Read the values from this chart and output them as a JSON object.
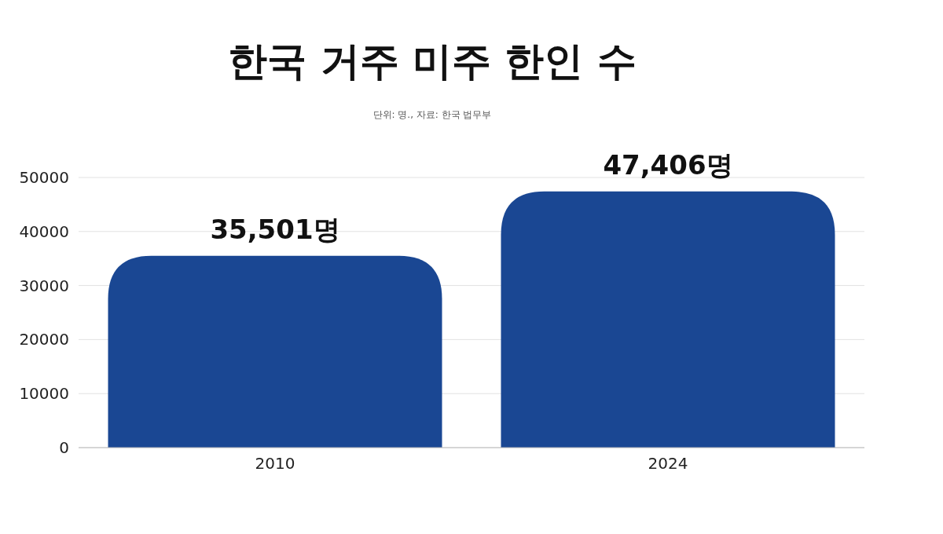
{
  "chart_data": {
    "type": "bar",
    "title": "한국 거주 미주 한인 수",
    "subtitle": "단위: 명., 자료: 한국 법무부",
    "categories": [
      "2010",
      "2024"
    ],
    "values": [
      35501,
      47406
    ],
    "color": "#1a4793",
    "value_labels": [
      "35,501명",
      "47,406명"
    ],
    "ylim": [
      0,
      50000
    ],
    "yticks": [
      0,
      10000,
      20000,
      30000,
      40000,
      50000
    ],
    "grid": "y"
  }
}
